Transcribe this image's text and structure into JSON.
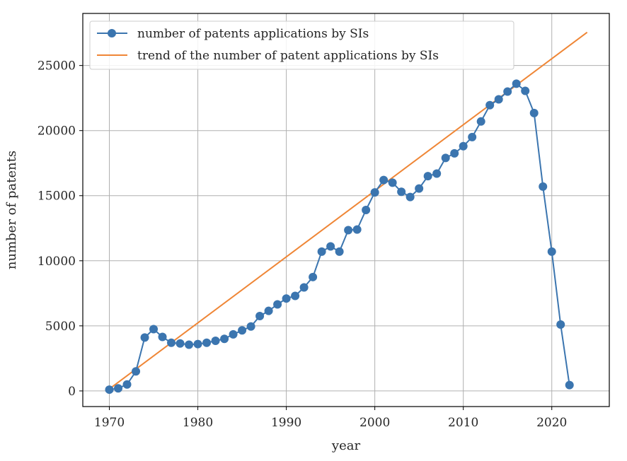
{
  "chart_data": {
    "type": "line",
    "xlabel": "year",
    "ylabel": "number of patents",
    "xlim": [
      1967,
      2026.5
    ],
    "ylim": [
      -1200,
      29000
    ],
    "xticks": [
      1970,
      1980,
      1990,
      2000,
      2010,
      2020
    ],
    "yticks": [
      0,
      5000,
      10000,
      15000,
      20000,
      25000
    ],
    "grid": true,
    "legend_position": "top-left",
    "series": [
      {
        "name": "number of patents applications by SIs",
        "color": "#3b75af",
        "marker": "circle",
        "x": [
          1970,
          1971,
          1972,
          1973,
          1974,
          1975,
          1976,
          1977,
          1978,
          1979,
          1980,
          1981,
          1982,
          1983,
          1984,
          1985,
          1986,
          1987,
          1988,
          1989,
          1990,
          1991,
          1992,
          1993,
          1994,
          1995,
          1996,
          1997,
          1998,
          1999,
          2000,
          2001,
          2002,
          2003,
          2004,
          2005,
          2006,
          2007,
          2008,
          2009,
          2010,
          2011,
          2012,
          2013,
          2014,
          2015,
          2016,
          2017,
          2018,
          2019,
          2020,
          2021,
          2022
        ],
        "y": [
          100,
          200,
          500,
          1500,
          4100,
          4750,
          4150,
          3700,
          3650,
          3550,
          3600,
          3700,
          3850,
          4000,
          4350,
          4650,
          4950,
          5750,
          6150,
          6650,
          7100,
          7300,
          7950,
          8750,
          10700,
          11100,
          10700,
          12350,
          12400,
          13900,
          15250,
          16200,
          16000,
          15300,
          14900,
          15550,
          16500,
          16700,
          17900,
          18250,
          18800,
          19500,
          20700,
          21950,
          22400,
          23000,
          23600,
          23050,
          21350,
          15700,
          10700,
          5100,
          450
        ]
      },
      {
        "name": "trend of the number of patent applications by SIs",
        "color": "#ef8636",
        "marker": "none",
        "x": [
          1970,
          2024
        ],
        "y": [
          150,
          27550
        ]
      }
    ]
  }
}
